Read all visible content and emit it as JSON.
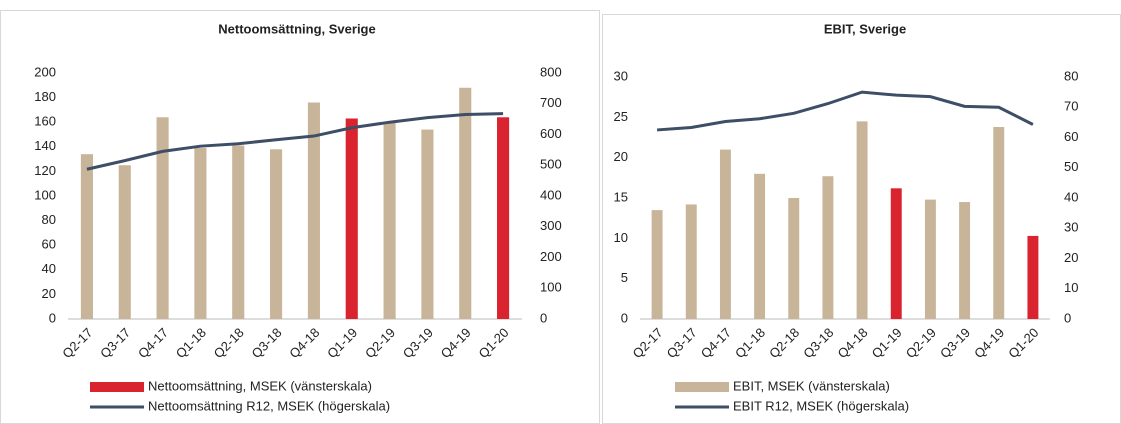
{
  "chart_data": [
    {
      "type": "bar-line",
      "title": "Nettoomsättning, Sverige",
      "categories": [
        "Q2-17",
        "Q3-17",
        "Q4-17",
        "Q1-18",
        "Q2-18",
        "Q3-18",
        "Q4-18",
        "Q1-19",
        "Q2-19",
        "Q3-19",
        "Q4-19",
        "Q1-20"
      ],
      "series": [
        {
          "name": "Nettoomsättning, MSEK (vänsterskala)",
          "color": "#d9232e",
          "colors": [
            "#c8b498",
            "#c8b498",
            "#c8b498",
            "#c8b498",
            "#c8b498",
            "#c8b498",
            "#c8b498",
            "#d9232e",
            "#c8b498",
            "#c8b498",
            "#c8b498",
            "#d9232e"
          ],
          "values": [
            134,
            125,
            164,
            139,
            141,
            138,
            176,
            163,
            160,
            154,
            188,
            164
          ]
        },
        {
          "name": "Nettoomsättning R12, MSEK (högerskala)",
          "color": "#3d4e66",
          "axis": "y2",
          "values": [
            487,
            515,
            545,
            562,
            570,
            583,
            595,
            622,
            640,
            655,
            665,
            668
          ]
        }
      ],
      "ylim": [
        0,
        200
      ],
      "yticks": [
        0,
        20,
        40,
        60,
        80,
        100,
        120,
        140,
        160,
        180,
        200
      ],
      "y2lim": [
        0,
        800
      ],
      "y2ticks": [
        0,
        100,
        200,
        300,
        400,
        500,
        600,
        700,
        800
      ]
    },
    {
      "type": "bar-line",
      "title": "EBIT, Sverige",
      "categories": [
        "Q2-17",
        "Q3-17",
        "Q4-17",
        "Q1-18",
        "Q2-18",
        "Q3-18",
        "Q4-18",
        "Q1-19",
        "Q2-19",
        "Q3-19",
        "Q4-19",
        "Q1-20"
      ],
      "series": [
        {
          "name": "EBIT, MSEK (vänsterskala)",
          "color": "#c8b498",
          "colors": [
            "#c8b498",
            "#c8b498",
            "#c8b498",
            "#c8b498",
            "#c8b498",
            "#c8b498",
            "#c8b498",
            "#d9232e",
            "#c8b498",
            "#c8b498",
            "#c8b498",
            "#d9232e"
          ],
          "values": [
            13.5,
            14.2,
            21,
            18,
            15,
            17.7,
            24.5,
            16.2,
            14.8,
            14.5,
            23.8,
            10.3
          ]
        },
        {
          "name": "EBIT R12, MSEK (högerskala)",
          "color": "#3d4e66",
          "axis": "y2",
          "values": [
            62.5,
            63.3,
            65.3,
            66.2,
            68,
            71.2,
            75,
            74,
            73.5,
            70.3,
            70,
            64.3
          ]
        }
      ],
      "ylim": [
        0,
        30
      ],
      "yticks": [
        0,
        5,
        10,
        15,
        20,
        25,
        30
      ],
      "y2lim": [
        0,
        80
      ],
      "y2ticks": [
        0,
        10,
        20,
        30,
        40,
        50,
        60,
        70,
        80
      ]
    }
  ]
}
